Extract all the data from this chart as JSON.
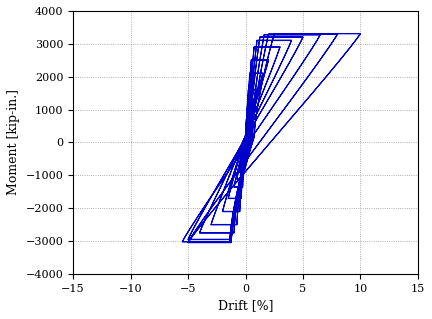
{
  "xlabel": "Drift [%]",
  "ylabel": "Moment [kip-in.]",
  "xlim": [
    -15,
    15
  ],
  "ylim": [
    -4000,
    4000
  ],
  "xticks": [
    -15,
    -10,
    -5,
    0,
    5,
    10,
    15
  ],
  "yticks": [
    -4000,
    -3000,
    -2000,
    -1000,
    0,
    1000,
    2000,
    3000,
    4000
  ],
  "line_color": "#0000CC",
  "line_width": 0.8,
  "background_color": "#ffffff",
  "grid_color": "#808080",
  "figsize": [
    4.32,
    3.19
  ],
  "dpi": 100,
  "cycles": [
    {
      "pd": 0.3,
      "nd": -0.3,
      "pm": 700,
      "nm": -600
    },
    {
      "pd": 0.3,
      "nd": -0.3,
      "pm": 720,
      "nm": -620
    },
    {
      "pd": 0.5,
      "nd": -0.5,
      "pm": 1000,
      "nm": -900
    },
    {
      "pd": 0.5,
      "nd": -0.5,
      "pm": 1020,
      "nm": -920
    },
    {
      "pd": 0.75,
      "nd": -0.75,
      "pm": 1300,
      "nm": -1100
    },
    {
      "pd": 0.75,
      "nd": -0.75,
      "pm": 1320,
      "nm": -1120
    },
    {
      "pd": 1.0,
      "nd": -1.0,
      "pm": 1600,
      "nm": -1350
    },
    {
      "pd": 1.0,
      "nd": -1.0,
      "pm": 1620,
      "nm": -1370
    },
    {
      "pd": 1.5,
      "nd": -1.5,
      "pm": 2100,
      "nm": -1700
    },
    {
      "pd": 1.5,
      "nd": -1.5,
      "pm": 2110,
      "nm": -1710
    },
    {
      "pd": 2.0,
      "nd": -2.0,
      "pm": 2500,
      "nm": -2100
    },
    {
      "pd": 2.0,
      "nd": -2.0,
      "pm": 2510,
      "nm": -2110
    },
    {
      "pd": 3.0,
      "nd": -3.0,
      "pm": 2900,
      "nm": -2500
    },
    {
      "pd": 3.0,
      "nd": -3.0,
      "pm": 2910,
      "nm": -2510
    },
    {
      "pd": 4.0,
      "nd": -4.0,
      "pm": 3100,
      "nm": -2750
    },
    {
      "pd": 4.0,
      "nd": -4.0,
      "pm": 3110,
      "nm": -2760
    },
    {
      "pd": 5.0,
      "nd": -5.0,
      "pm": 3200,
      "nm": -2950
    },
    {
      "pd": 5.0,
      "nd": -5.0,
      "pm": 3210,
      "nm": -2960
    },
    {
      "pd": 6.5,
      "nd": -5.5,
      "pm": 3270,
      "nm": -3020
    },
    {
      "pd": 6.5,
      "nd": -5.5,
      "pm": 3280,
      "nm": -3030
    },
    {
      "pd": 8.0,
      "nd": -5.0,
      "pm": 3290,
      "nm": -3040
    },
    {
      "pd": 8.0,
      "nd": -5.0,
      "pm": 3300,
      "nm": -3040
    },
    {
      "pd": 10.0,
      "nd": -5.0,
      "pm": 3310,
      "nm": -3050
    },
    {
      "pd": 10.0,
      "nd": -5.0,
      "pm": 3310,
      "nm": -3050
    }
  ]
}
